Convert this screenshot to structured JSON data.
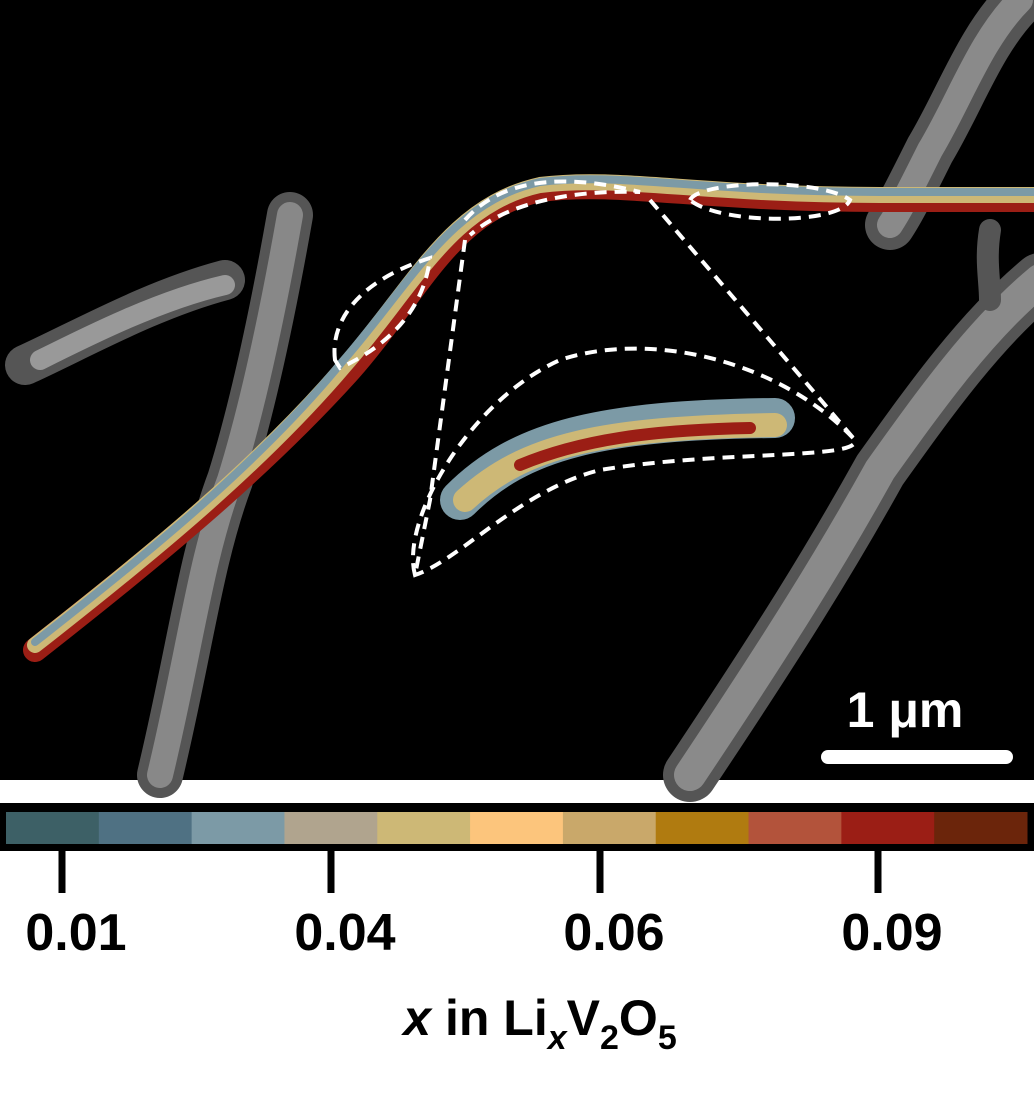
{
  "image": {
    "scale_bar": "1 μm"
  },
  "colorbar": {
    "colors": [
      "#3d6066",
      "#4f7183",
      "#7c9aa6",
      "#b0a48e",
      "#cdb876",
      "#fcc57c",
      "#c9a86a",
      "#b07b10",
      "#b3533b",
      "#9b1e15",
      "#6b250b"
    ],
    "ticks": [
      "0.01",
      "0.04",
      "0.06",
      "0.09"
    ],
    "label": [
      "x",
      " in Li",
      "x",
      "V",
      "2",
      "O",
      "5"
    ]
  }
}
